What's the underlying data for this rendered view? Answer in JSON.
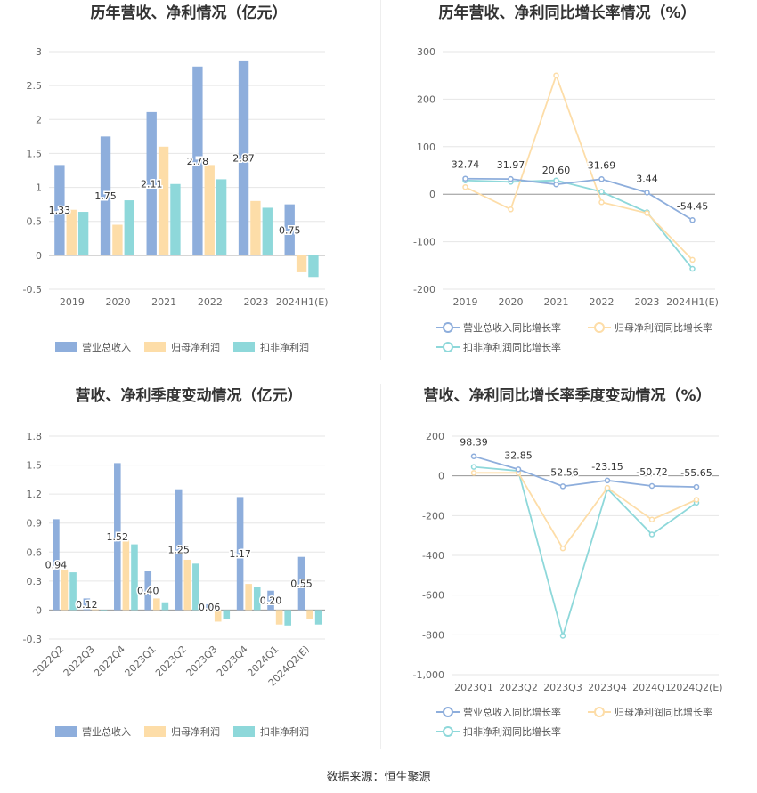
{
  "source": "数据来源：恒生聚源",
  "colors": {
    "revenue": "#8EAEDC",
    "netprofit": "#FDDDA8",
    "deducted": "#8ED8DA"
  },
  "chart_data": [
    {
      "type": "bar",
      "title": "历年营收、净利情况（亿元）",
      "categories": [
        "2019",
        "2020",
        "2021",
        "2022",
        "2023",
        "2024H1(E)"
      ],
      "ylim": [
        -0.5,
        3
      ],
      "yticks": [
        "-0.5",
        "0",
        "0.5",
        "1",
        "1.5",
        "2",
        "2.5",
        "3"
      ],
      "series": [
        {
          "name": "营业总收入",
          "values": [
            1.33,
            1.75,
            2.11,
            2.78,
            2.87,
            0.75
          ],
          "labels": [
            "1.33",
            "1.75",
            "2.11",
            "2.78",
            "2.87",
            "0.75"
          ]
        },
        {
          "name": "归母净利润",
          "values": [
            0.67,
            0.45,
            1.6,
            1.33,
            0.8,
            -0.25
          ]
        },
        {
          "name": "扣非净利润",
          "values": [
            0.64,
            0.81,
            1.05,
            1.12,
            0.7,
            -0.32
          ]
        }
      ],
      "grid": true,
      "legend": "bottom"
    },
    {
      "type": "line",
      "title": "历年营收、净利同比增长率情况（%）",
      "categories": [
        "2019",
        "2020",
        "2021",
        "2022",
        "2023",
        "2024H1(E)"
      ],
      "ylim": [
        -200,
        300
      ],
      "yticks": [
        "-200",
        "-100",
        "0",
        "100",
        "200",
        "300"
      ],
      "series": [
        {
          "name": "营业总收入同比增长率",
          "values": [
            32.74,
            31.97,
            20.6,
            31.69,
            3.44,
            -54.45
          ],
          "labels": [
            "32.74",
            "31.97",
            "20.60",
            "31.69",
            "3.44",
            "-54.45"
          ]
        },
        {
          "name": "归母净利润同比增长率",
          "values": [
            15,
            -32,
            250,
            -17,
            -40,
            -138
          ]
        },
        {
          "name": "扣非净利润同比增长率",
          "values": [
            29,
            26,
            29,
            5,
            -38,
            -157
          ]
        }
      ],
      "grid": true,
      "legend": "bottom"
    },
    {
      "type": "bar",
      "title": "营收、净利季度变动情况（亿元）",
      "categories": [
        "2022Q2",
        "2022Q3",
        "2022Q4",
        "2023Q1",
        "2023Q2",
        "2023Q3",
        "2023Q4",
        "2024Q1",
        "2024Q2(E)"
      ],
      "ylim": [
        -0.3,
        1.8
      ],
      "yticks": [
        "-0.3",
        "0",
        "0.3",
        "0.6",
        "0.9",
        "1.2",
        "1.5",
        "1.8"
      ],
      "series": [
        {
          "name": "营业总收入",
          "values": [
            0.94,
            0.12,
            1.52,
            0.4,
            1.25,
            0.06,
            1.17,
            0.2,
            0.55
          ],
          "labels": [
            "0.94",
            "0.12",
            "1.52",
            "0.40",
            "1.25",
            "0.06",
            "1.17",
            "0.20",
            "0.55"
          ]
        },
        {
          "name": "归母净利润",
          "values": [
            0.42,
            0.01,
            0.72,
            0.12,
            0.52,
            -0.12,
            0.27,
            -0.15,
            -0.09
          ]
        },
        {
          "name": "扣非净利润",
          "values": [
            0.39,
            -0.01,
            0.68,
            0.08,
            0.48,
            -0.09,
            0.24,
            -0.16,
            -0.15
          ]
        }
      ],
      "grid": true,
      "legend": "bottom"
    },
    {
      "type": "line",
      "title": "营收、净利同比增长率季度变动情况（%）",
      "categories": [
        "2023Q1",
        "2023Q2",
        "2023Q3",
        "2023Q4",
        "2024Q1",
        "2024Q2(E)"
      ],
      "ylim": [
        -1000,
        200
      ],
      "yticks": [
        "-1,000",
        "-800",
        "-600",
        "-400",
        "-200",
        "0",
        "200"
      ],
      "series": [
        {
          "name": "营业总收入同比增长率",
          "values": [
            98.39,
            32.85,
            -52.56,
            -23.15,
            -50.72,
            -55.65
          ],
          "labels": [
            "98.39",
            "32.85",
            "-52.56",
            "-23.15",
            "-50.72",
            "-55.65"
          ]
        },
        {
          "name": "归母净利润同比增长率",
          "values": [
            15,
            15,
            -365,
            -60,
            -220,
            -120
          ]
        },
        {
          "name": "扣非净利润同比增长率",
          "values": [
            45,
            25,
            -805,
            -65,
            -295,
            -135
          ]
        }
      ],
      "grid": true,
      "legend": "bottom"
    }
  ]
}
